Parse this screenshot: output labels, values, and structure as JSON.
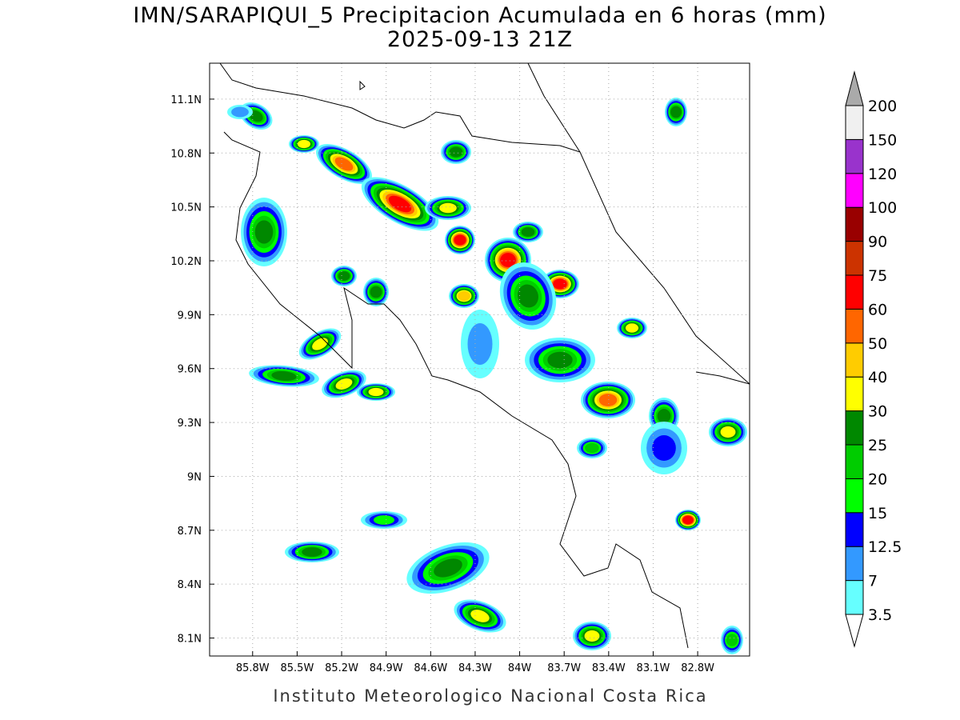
{
  "header": {
    "title": "IMN/SARAPIQUI_5 Precipitacion Acumulada en 6 horas (mm)",
    "subtitle": "2025-09-13 21Z"
  },
  "map": {
    "xlim": [
      -86.09,
      -82.45
    ],
    "ylim": [
      8.0,
      11.3
    ],
    "grid": true,
    "xticks": [
      {
        "value": -85.8,
        "label": "85.8W"
      },
      {
        "value": -85.5,
        "label": "85.5W"
      },
      {
        "value": -85.2,
        "label": "85.2W"
      },
      {
        "value": -84.9,
        "label": "84.9W"
      },
      {
        "value": -84.6,
        "label": "84.6W"
      },
      {
        "value": -84.3,
        "label": "84.3W"
      },
      {
        "value": -84,
        "label": "84W"
      },
      {
        "value": -83.7,
        "label": "83.7W"
      },
      {
        "value": -83.4,
        "label": "83.4W"
      },
      {
        "value": -83.1,
        "label": "83.1W"
      },
      {
        "value": -82.8,
        "label": "82.8W"
      }
    ],
    "yticks": [
      {
        "value": 11.1,
        "label": "11.1N"
      },
      {
        "value": 10.8,
        "label": "10.8N"
      },
      {
        "value": 10.5,
        "label": "10.5N"
      },
      {
        "value": 10.2,
        "label": "10.2N"
      },
      {
        "value": 9.9,
        "label": "9.9N"
      },
      {
        "value": 9.6,
        "label": "9.6N"
      },
      {
        "value": 9.3,
        "label": "9.3N"
      },
      {
        "value": 9,
        "label": "9N"
      },
      {
        "value": 8.7,
        "label": "8.7N"
      },
      {
        "value": 8.4,
        "label": "8.4N"
      },
      {
        "value": 8.1,
        "label": "8.1N"
      }
    ]
  },
  "colorbar": {
    "levels": [
      3.5,
      7,
      12.5,
      15,
      20,
      25,
      30,
      40,
      50,
      60,
      75,
      90,
      100,
      120,
      150,
      200
    ],
    "colors": [
      "#ffffff",
      "#66ffff",
      "#3399ff",
      "#0000ff",
      "#00ff00",
      "#00cc00",
      "#008800",
      "#ffff00",
      "#ffcc00",
      "#ff6600",
      "#ff0000",
      "#cc3300",
      "#990000",
      "#ff00ff",
      "#9933cc",
      "#f0f0f0",
      "#aaaaaa"
    ]
  },
  "footer": "Instituto Meteorologico Nacional Costa Rica"
}
